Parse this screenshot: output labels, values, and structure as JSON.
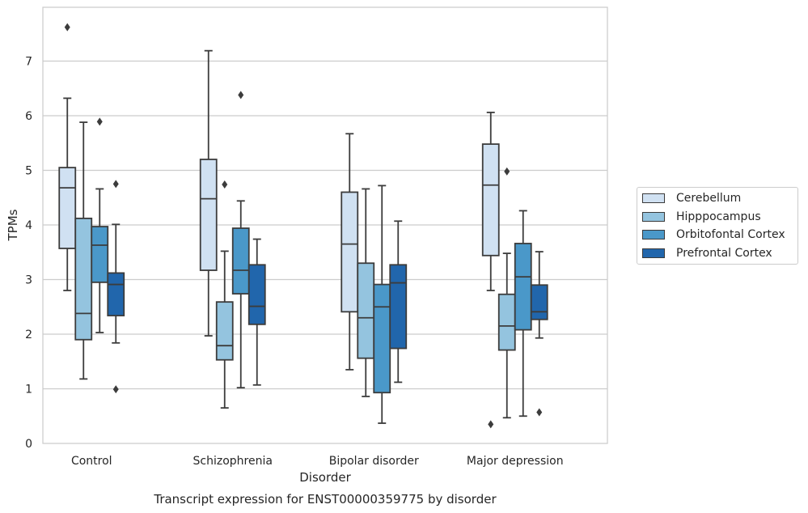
{
  "chart_data": {
    "type": "box",
    "title": "Transcript expression for ENST00000359775 by disorder",
    "xlabel": "Disorder",
    "ylabel": "TPMs",
    "ylim": [
      0,
      8
    ],
    "yticks": [
      "0",
      "1",
      "2",
      "3",
      "4",
      "5",
      "6",
      "7"
    ],
    "grid": "horizontal",
    "legend_position": "right",
    "categories": [
      "Control",
      "Schizophrenia",
      "Bipolar disorder",
      "Major depression"
    ],
    "series": [
      {
        "name": "Cerebellum",
        "color": "#d0e1f2",
        "boxes": [
          {
            "whislo": 2.8,
            "q1": 3.57,
            "med": 4.68,
            "q3": 5.05,
            "whishi": 6.32,
            "fliers": [
              7.62
            ]
          },
          {
            "whislo": 1.97,
            "q1": 3.17,
            "med": 4.48,
            "q3": 5.2,
            "whishi": 7.19,
            "fliers": []
          },
          {
            "whislo": 1.35,
            "q1": 2.41,
            "med": 3.65,
            "q3": 4.6,
            "whishi": 5.67,
            "fliers": []
          },
          {
            "whislo": 2.8,
            "q1": 3.44,
            "med": 4.73,
            "q3": 5.48,
            "whishi": 6.06,
            "fliers": [
              0.35
            ]
          }
        ]
      },
      {
        "name": "Hipppocampus",
        "color": "#94c4df",
        "boxes": [
          {
            "whislo": 1.18,
            "q1": 1.9,
            "med": 2.38,
            "q3": 4.12,
            "whishi": 5.88,
            "fliers": []
          },
          {
            "whislo": 0.65,
            "q1": 1.53,
            "med": 1.79,
            "q3": 2.59,
            "whishi": 3.52,
            "fliers": [
              4.74
            ]
          },
          {
            "whislo": 0.86,
            "q1": 1.56,
            "med": 2.3,
            "q3": 3.3,
            "whishi": 4.66,
            "fliers": []
          },
          {
            "whislo": 0.47,
            "q1": 1.71,
            "med": 2.15,
            "q3": 2.73,
            "whishi": 3.48,
            "fliers": [
              4.98
            ]
          }
        ]
      },
      {
        "name": "Orbitofontal Cortex",
        "color": "#4a98c9",
        "boxes": [
          {
            "whislo": 2.03,
            "q1": 2.95,
            "med": 3.63,
            "q3": 3.97,
            "whishi": 4.66,
            "fliers": [
              5.89
            ]
          },
          {
            "whislo": 1.02,
            "q1": 2.74,
            "med": 3.17,
            "q3": 3.94,
            "whishi": 4.44,
            "fliers": [
              6.38
            ]
          },
          {
            "whislo": 0.37,
            "q1": 0.93,
            "med": 2.5,
            "q3": 2.91,
            "whishi": 4.72,
            "fliers": []
          },
          {
            "whislo": 0.5,
            "q1": 2.08,
            "med": 3.05,
            "q3": 3.66,
            "whishi": 4.26,
            "fliers": []
          }
        ]
      },
      {
        "name": "Prefrontal Cortex",
        "color": "#2166ac",
        "boxes": [
          {
            "whislo": 1.84,
            "q1": 2.34,
            "med": 2.91,
            "q3": 3.12,
            "whishi": 4.01,
            "fliers": [
              4.75,
              0.99
            ]
          },
          {
            "whislo": 1.07,
            "q1": 2.18,
            "med": 2.51,
            "q3": 3.27,
            "whishi": 3.74,
            "fliers": []
          },
          {
            "whislo": 1.12,
            "q1": 1.74,
            "med": 2.94,
            "q3": 3.27,
            "whishi": 4.07,
            "fliers": []
          },
          {
            "whislo": 1.93,
            "q1": 2.27,
            "med": 2.41,
            "q3": 2.9,
            "whishi": 3.51,
            "fliers": [
              0.57
            ]
          }
        ]
      }
    ]
  }
}
